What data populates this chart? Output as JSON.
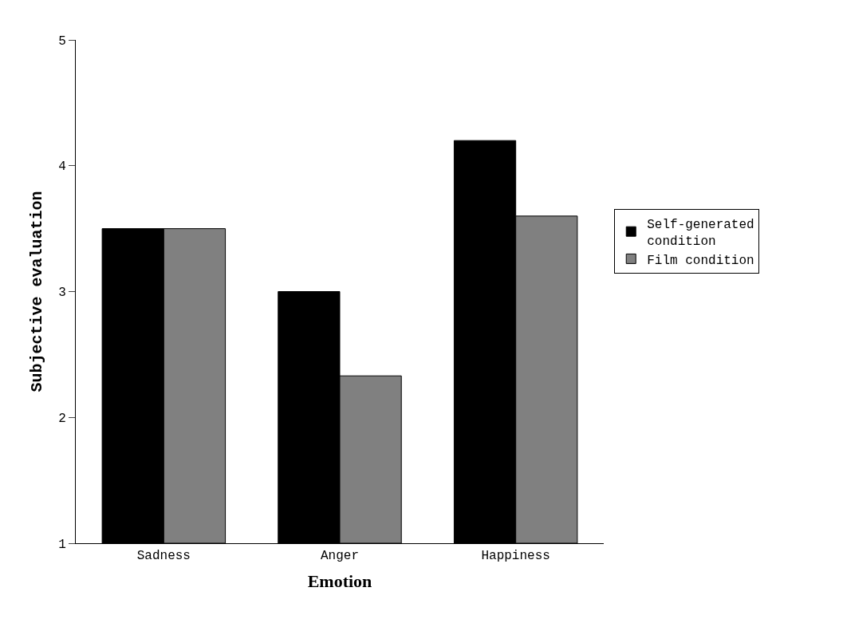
{
  "chart_data": {
    "type": "bar",
    "xlabel": "Emotion",
    "ylabel": "Subjective evaluation",
    "categories": [
      "Sadness",
      "Anger",
      "Happiness"
    ],
    "series": [
      {
        "name": "Self-generated condition",
        "color": "#000000",
        "values": [
          3.5,
          3.0,
          4.2
        ]
      },
      {
        "name": "Film condition",
        "color": "#808080",
        "values": [
          3.5,
          2.33,
          3.6
        ]
      }
    ],
    "ylim": [
      1,
      5
    ],
    "yticks": [
      1,
      2,
      3,
      4,
      5
    ],
    "legend": "right"
  }
}
